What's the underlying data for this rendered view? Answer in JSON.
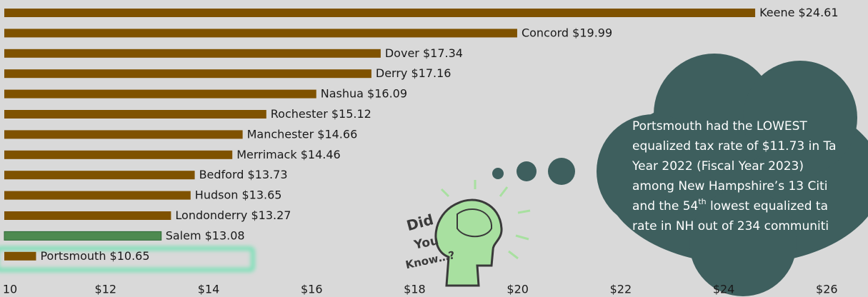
{
  "chart_data": {
    "type": "bar",
    "orientation": "horizontal",
    "categories": [
      "Keene",
      "Concord",
      "Dover",
      "Derry",
      "Nashua",
      "Rochester",
      "Manchester",
      "Merrimack",
      "Bedford",
      "Hudson",
      "Londonderry",
      "Salem",
      "Portsmouth"
    ],
    "values": [
      24.61,
      19.99,
      17.34,
      17.16,
      16.09,
      15.12,
      14.66,
      14.46,
      13.73,
      13.65,
      13.27,
      13.08,
      10.65
    ],
    "value_labels": [
      "$24.61",
      "$19.99",
      "$17.34",
      "$17.16",
      "$16.09",
      "$15.12",
      "$14.66",
      "$14.46",
      "$13.73",
      "$13.65",
      "$13.27",
      "$13.08",
      "$10.65"
    ],
    "colors": [
      "#7f5200",
      "#7f5200",
      "#7f5200",
      "#7f5200",
      "#7f5200",
      "#7f5200",
      "#7f5200",
      "#7f5200",
      "#7f5200",
      "#7f5200",
      "#7f5200",
      "#4e8a50",
      "#7f5200"
    ],
    "xlim": [
      9.95,
      26.8
    ],
    "xticks": [
      {
        "value": 10,
        "label": "10"
      },
      {
        "value": 12,
        "label": "$12"
      },
      {
        "value": 14,
        "label": "$14"
      },
      {
        "value": 16,
        "label": "$16"
      },
      {
        "value": 18,
        "label": "$18"
      },
      {
        "value": 20,
        "label": "$20"
      },
      {
        "value": 22,
        "label": "$22"
      },
      {
        "value": 24,
        "label": "$24"
      },
      {
        "value": 26,
        "label": "$26"
      }
    ]
  },
  "annotation": {
    "lines": [
      "Portsmouth had the LOWEST",
      "equalized tax rate of $11.73 in Ta",
      "Year 2022 (Fiscal Year 2023)",
      "among New Hampshire’s 13 Citi",
      "rate in NH out of 234 communiti"
    ],
    "line5": [
      "and the 54",
      "th",
      " lowest equalized ta"
    ],
    "icon_text": [
      "Did",
      "You",
      "Know…?"
    ]
  }
}
